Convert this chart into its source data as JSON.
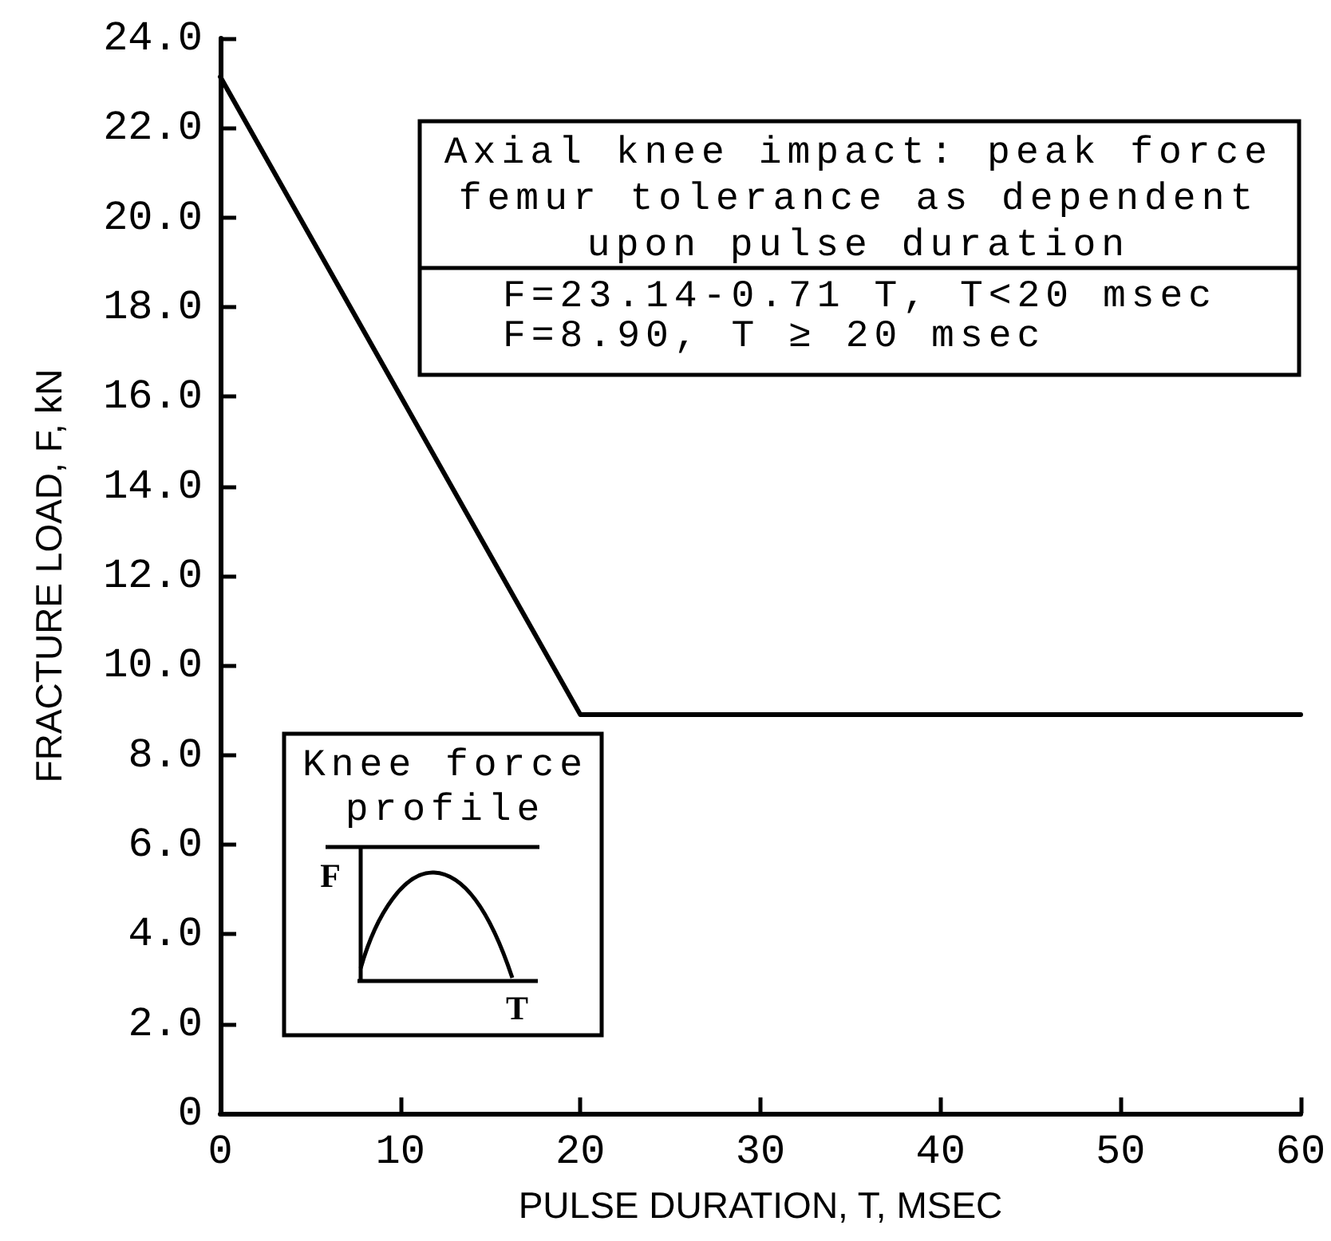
{
  "chart_data": {
    "type": "line",
    "xlabel": "PULSE DURATION, T, MSEC",
    "ylabel": "FRACTURE LOAD, F, kN",
    "x": [
      0,
      20,
      60
    ],
    "series": [
      {
        "color": "#000000",
        "values": [
          23.14,
          8.9,
          8.9
        ]
      }
    ],
    "xlim": [
      0,
      60
    ],
    "xticks": [
      0,
      10,
      20,
      30,
      40,
      50,
      60
    ],
    "ylim": [
      0,
      24
    ],
    "yticks": [
      0,
      {
        "value": 2,
        "label": "2.0"
      },
      {
        "value": 4,
        "label": "4.0"
      },
      {
        "value": 6,
        "label": "6.0"
      },
      {
        "value": 8,
        "label": "8.0"
      },
      {
        "value": 10,
        "label": "10.0"
      },
      {
        "value": 12,
        "label": "12.0"
      },
      {
        "value": 14,
        "label": "14.0"
      },
      {
        "value": 16,
        "label": "16.0"
      },
      {
        "value": 18,
        "label": "18.0"
      },
      {
        "value": 20,
        "label": "20.0"
      },
      {
        "value": 22,
        "label": "22.0"
      },
      {
        "value": 24,
        "label": "24.0"
      }
    ],
    "grid": false,
    "annotations": [
      "Axial knee impact: peak force femur tolerance as dependent upon pulse duration",
      "F=23.14-0.71 T, T<20 msec",
      "F=8.90, T ≥ 20 msec",
      "Knee force profile",
      "F",
      "T"
    ]
  }
}
